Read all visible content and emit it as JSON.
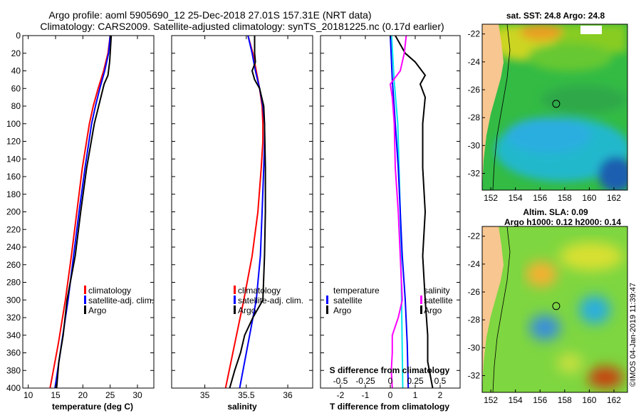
{
  "figure": {
    "title_line1": "Argo profile: aoml 5905690_12 25-Dec-2018 27.01S 157.31E (NRT data)",
    "title_line2": "Climatology: CARS2009. Satellite-adjusted climatology: synTS_20181225.nc (0.17d earlier)",
    "credit": "©IMOS 04-Jan-2019 11:39:47"
  },
  "colors": {
    "climatology": "#ff0000",
    "satellite": "#0000ff",
    "argo": "#000000",
    "temp_diff": "#00e5ee",
    "sal_diff": "#ff00ff",
    "land": "#f8c690"
  },
  "chart_data": [
    {
      "type": "line",
      "id": "temperature",
      "xlabel": "temperature (deg C)",
      "xlim": [
        9,
        33
      ],
      "xticks": [
        10,
        15,
        20,
        25,
        30
      ],
      "ylim": [
        0,
        400
      ],
      "yticks": [
        0,
        20,
        40,
        60,
        80,
        100,
        120,
        140,
        160,
        180,
        200,
        220,
        240,
        260,
        280,
        300,
        320,
        340,
        360,
        380,
        400
      ],
      "y_inverted": true,
      "legend": [
        "climatology",
        "satellite-adj. clim.",
        "Argo"
      ],
      "series": [
        {
          "name": "climatology",
          "depth": [
            0,
            20,
            40,
            60,
            80,
            100,
            150,
            200,
            250,
            300,
            350,
            400
          ],
          "values": [
            25.0,
            24.6,
            23.8,
            22.8,
            21.9,
            21.2,
            19.9,
            18.9,
            17.9,
            16.8,
            15.5,
            14.0
          ]
        },
        {
          "name": "satellite-adj. clim.",
          "depth": [
            0,
            20,
            40,
            60,
            80,
            100,
            150,
            200,
            250,
            300,
            350,
            400
          ],
          "values": [
            25.0,
            24.7,
            24.0,
            23.1,
            22.3,
            21.6,
            20.4,
            19.3,
            18.3,
            17.3,
            16.1,
            14.9
          ]
        },
        {
          "name": "Argo",
          "depth": [
            0,
            20,
            30,
            45,
            55,
            70,
            100,
            150,
            200,
            250,
            300,
            340,
            370,
            400
          ],
          "values": [
            25.2,
            25.0,
            24.9,
            24.6,
            23.9,
            23.3,
            22.1,
            20.7,
            19.6,
            18.6,
            17.1,
            16.4,
            15.6,
            15.2
          ]
        }
      ]
    },
    {
      "type": "line",
      "id": "salinity",
      "xlabel": "salinity",
      "xlim": [
        34.6,
        36.3
      ],
      "xticks": [
        35,
        35.5,
        36
      ],
      "ylim": [
        0,
        400
      ],
      "y_inverted": true,
      "legend": [
        "climatology",
        "satellite-adj. clim.",
        "Argo"
      ],
      "series": [
        {
          "name": "climatology",
          "depth": [
            0,
            20,
            40,
            60,
            80,
            100,
            120,
            150,
            200,
            250,
            300,
            350,
            400
          ],
          "values": [
            35.52,
            35.58,
            35.62,
            35.66,
            35.69,
            35.7,
            35.7,
            35.68,
            35.64,
            35.57,
            35.47,
            35.36,
            35.25
          ]
        },
        {
          "name": "satellite-adj. clim.",
          "depth": [
            0,
            20,
            40,
            60,
            80,
            100,
            120,
            150,
            200,
            250,
            300,
            350,
            400
          ],
          "values": [
            35.52,
            35.57,
            35.61,
            35.66,
            35.7,
            35.72,
            35.72,
            35.71,
            35.69,
            35.67,
            35.62,
            35.52,
            35.42
          ]
        },
        {
          "name": "Argo",
          "depth": [
            0,
            20,
            30,
            40,
            50,
            60,
            80,
            100,
            150,
            200,
            250,
            300,
            320,
            340,
            360,
            380,
            400
          ],
          "values": [
            35.6,
            35.6,
            35.61,
            35.57,
            35.6,
            35.66,
            35.71,
            35.72,
            35.73,
            35.73,
            35.72,
            35.7,
            35.58,
            35.48,
            35.43,
            35.36,
            35.3
          ]
        }
      ]
    },
    {
      "type": "line",
      "id": "difference",
      "xlabel": "T difference from climatology",
      "xlabel2": "S difference from climatology",
      "xlim": [
        -2.8,
        2.8
      ],
      "xticks": [
        -2,
        -1,
        0,
        1,
        2
      ],
      "x2ticks": [
        -0.5,
        -0.25,
        0,
        0.25,
        0.5
      ],
      "ylim": [
        0,
        400
      ],
      "y_inverted": true,
      "legend_left_title": "temperature",
      "legend_right_title": "salinity",
      "legend_left": [
        "satellite",
        "Argo"
      ],
      "legend_right": [
        "satellite",
        "Argo"
      ],
      "series": [
        {
          "name": "temperature satellite",
          "depth": [
            0,
            50,
            100,
            200,
            300,
            400
          ],
          "values": [
            0.05,
            0.15,
            0.3,
            0.4,
            0.45,
            0.5
          ]
        },
        {
          "name": "temperature Argo",
          "depth": [
            0,
            20,
            30,
            45,
            55,
            70,
            100,
            150,
            200,
            250,
            300,
            340,
            370,
            400
          ],
          "values": [
            0.2,
            0.6,
            1.0,
            1.4,
            1.2,
            1.4,
            1.3,
            1.3,
            1.4,
            1.3,
            1.4,
            1.5,
            1.5,
            1.7
          ]
        },
        {
          "name": "salinity satellite",
          "depth": [
            0,
            50,
            100,
            150,
            200,
            250,
            300,
            350,
            400
          ],
          "values": [
            0.0,
            0.02,
            0.05,
            0.08,
            0.1,
            0.12,
            0.15,
            0.17,
            0.18
          ]
        },
        {
          "name": "salinity Argo",
          "depth": [
            0,
            20,
            40,
            55,
            70,
            100,
            150,
            200,
            250,
            300,
            320,
            340,
            360,
            380,
            400
          ],
          "values": [
            0.16,
            0.14,
            0.1,
            0.0,
            0.02,
            0.04,
            0.05,
            0.08,
            0.1,
            0.12,
            0.08,
            0.02,
            0.02,
            0.01,
            0.02
          ]
        }
      ]
    },
    {
      "type": "heatmap",
      "id": "sst_map",
      "title": "sat. SST: 24.8 Argo: 24.8",
      "xticks": [
        152,
        154,
        156,
        158,
        160,
        162
      ],
      "yticks": [
        -22,
        -24,
        -26,
        -28,
        -30,
        -32
      ],
      "xlim": [
        151.3,
        163.1
      ],
      "ylim": [
        -33.2,
        -21.3
      ],
      "marker": {
        "lon": 157.31,
        "lat": -27.01
      }
    },
    {
      "type": "heatmap",
      "id": "sla_map",
      "title": "Altim. SLA: 0.09",
      "subtitle": "Argo h1000: 0.12 h2000: 0.14",
      "xticks": [
        152,
        154,
        156,
        158,
        160,
        162
      ],
      "yticks": [
        -22,
        -24,
        -26,
        -28,
        -30,
        -32
      ],
      "xlim": [
        151.3,
        163.1
      ],
      "ylim": [
        -33.2,
        -21.3
      ],
      "marker": {
        "lon": 157.31,
        "lat": -27.01
      }
    }
  ]
}
